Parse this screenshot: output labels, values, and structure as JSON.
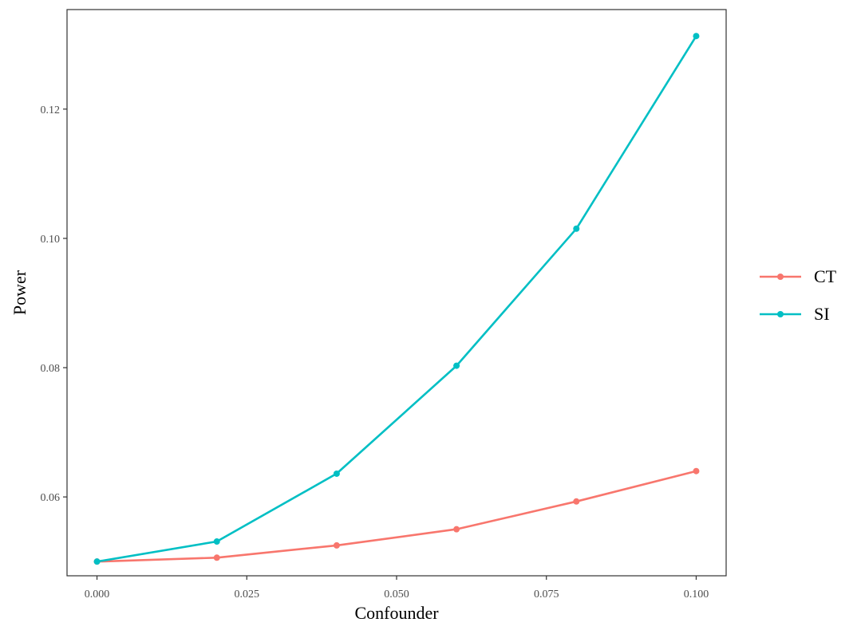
{
  "chart_data": {
    "type": "line",
    "title": "",
    "xlabel": "Confounder",
    "ylabel": "Power",
    "x": [
      0.0,
      0.02,
      0.04,
      0.06,
      0.08,
      0.1
    ],
    "xlim": [
      -0.005,
      0.105
    ],
    "ylim": [
      0.0478,
      0.1354
    ],
    "x_ticks": [
      0.0,
      0.025,
      0.05,
      0.075,
      0.1
    ],
    "x_tick_labels": [
      "0.000",
      "0.025",
      "0.050",
      "0.075",
      "0.100"
    ],
    "y_ticks": [
      0.06,
      0.08,
      0.1,
      0.12
    ],
    "y_tick_labels": [
      "0.06",
      "0.08",
      "0.10",
      "0.12"
    ],
    "grid": false,
    "legend_position": "right",
    "series": [
      {
        "name": "CT",
        "color": "#F8766D",
        "values": [
          0.05,
          0.0506,
          0.0525,
          0.055,
          0.0593,
          0.064
        ]
      },
      {
        "name": "SI",
        "color": "#00BFC4",
        "values": [
          0.05,
          0.0531,
          0.0636,
          0.0803,
          0.1015,
          0.1313
        ]
      }
    ]
  }
}
